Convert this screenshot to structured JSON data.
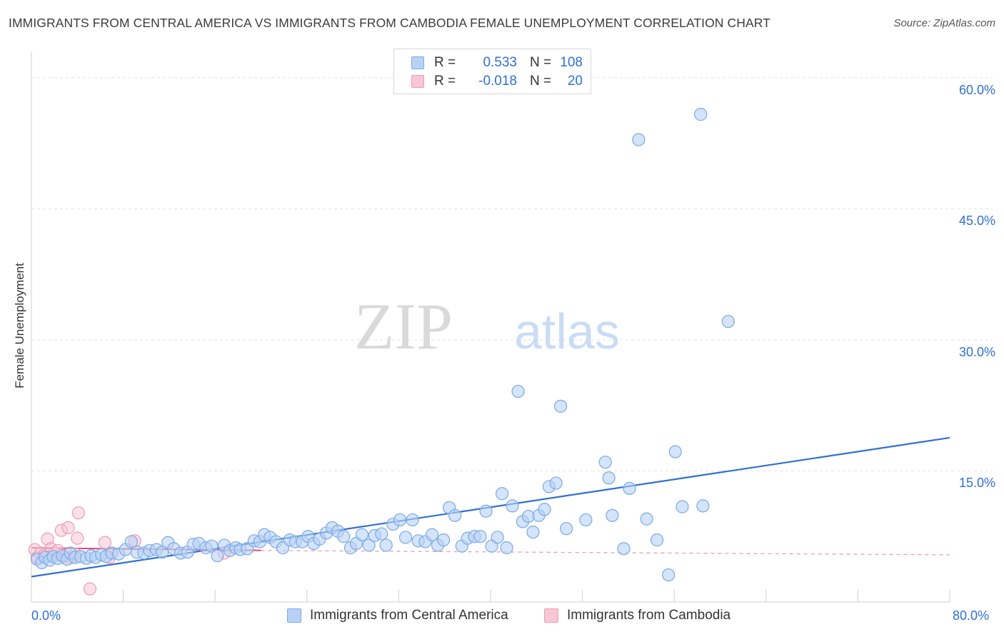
{
  "header": {
    "title": "IMMIGRANTS FROM CENTRAL AMERICA VS IMMIGRANTS FROM CAMBODIA FEMALE UNEMPLOYMENT CORRELATION CHART",
    "source": "Source: ZipAtlas.com"
  },
  "watermark": {
    "zip": "ZIP",
    "atlas": "atlas"
  },
  "legend": {
    "rows": [
      {
        "r_label": "R =",
        "r_value": "0.533",
        "n_label": "N =",
        "n_value": "108"
      },
      {
        "r_label": "R =",
        "r_value": "-0.018",
        "n_label": "N =",
        "n_value": "20"
      }
    ]
  },
  "bottom_legend": {
    "series_a": "Immigrants from Central America",
    "series_b": "Immigrants from Cambodia"
  },
  "colors": {
    "blue_fill": "#b7d2f5",
    "blue_stroke": "#7aa9e6",
    "blue_line": "#2e6fd4",
    "pink_fill": "#f9c6d5",
    "pink_stroke": "#ee9ab4",
    "pink_line": "#e8457b",
    "grid": "#e3e3e3",
    "tick_text": "#2e6fd4"
  },
  "chart_data": {
    "type": "scatter",
    "title": "IMMIGRANTS FROM CENTRAL AMERICA VS IMMIGRANTS FROM CAMBODIA FEMALE UNEMPLOYMENT CORRELATION CHART",
    "xlabel": "",
    "ylabel": "Female Unemployment",
    "xlim": [
      0,
      80
    ],
    "ylim": [
      0,
      63
    ],
    "x_tick_labels": [
      "0.0%",
      "80.0%"
    ],
    "y_ticks": [
      15,
      30,
      45,
      60
    ],
    "y_tick_labels": [
      "15.0%",
      "30.0%",
      "45.0%",
      "60.0%"
    ],
    "grid": true,
    "series": [
      {
        "name": "Immigrants from Central America",
        "color": "#b7d2f5",
        "R": 0.533,
        "N": 108,
        "trend": {
          "x": [
            0,
            80
          ],
          "y": [
            2.9,
            18.8
          ],
          "style": "solid"
        },
        "points": [
          [
            0.5,
            4.9
          ],
          [
            0.9,
            4.5
          ],
          [
            1.2,
            5.1
          ],
          [
            1.6,
            4.8
          ],
          [
            1.9,
            5.2
          ],
          [
            2.3,
            5.0
          ],
          [
            2.7,
            5.3
          ],
          [
            3.1,
            4.9
          ],
          [
            3.4,
            5.6
          ],
          [
            3.8,
            5.1
          ],
          [
            4.3,
            5.2
          ],
          [
            4.8,
            5.0
          ],
          [
            5.2,
            5.3
          ],
          [
            5.6,
            5.1
          ],
          [
            6.1,
            5.4
          ],
          [
            6.5,
            5.2
          ],
          [
            7.0,
            5.6
          ],
          [
            7.6,
            5.5
          ],
          [
            8.2,
            6.0
          ],
          [
            8.7,
            6.9
          ],
          [
            9.2,
            5.7
          ],
          [
            9.8,
            5.6
          ],
          [
            10.3,
            5.9
          ],
          [
            10.9,
            6.0
          ],
          [
            11.4,
            5.7
          ],
          [
            11.9,
            6.8
          ],
          [
            12.4,
            6.1
          ],
          [
            13.0,
            5.6
          ],
          [
            13.6,
            5.7
          ],
          [
            14.1,
            6.6
          ],
          [
            14.6,
            6.7
          ],
          [
            15.2,
            6.2
          ],
          [
            15.7,
            6.4
          ],
          [
            16.2,
            5.3
          ],
          [
            16.8,
            6.5
          ],
          [
            17.3,
            5.9
          ],
          [
            17.8,
            6.2
          ],
          [
            18.2,
            6.0
          ],
          [
            18.8,
            6.1
          ],
          [
            19.4,
            7.0
          ],
          [
            19.9,
            6.9
          ],
          [
            20.3,
            7.7
          ],
          [
            20.8,
            7.4
          ],
          [
            21.3,
            6.9
          ],
          [
            21.9,
            6.2
          ],
          [
            22.5,
            7.1
          ],
          [
            23.0,
            6.9
          ],
          [
            23.6,
            6.9
          ],
          [
            24.1,
            7.5
          ],
          [
            24.6,
            6.7
          ],
          [
            25.1,
            7.2
          ],
          [
            25.7,
            7.9
          ],
          [
            26.2,
            8.5
          ],
          [
            26.7,
            8.1
          ],
          [
            27.2,
            7.5
          ],
          [
            27.8,
            6.2
          ],
          [
            28.3,
            6.7
          ],
          [
            28.8,
            7.7
          ],
          [
            29.4,
            6.5
          ],
          [
            29.9,
            7.6
          ],
          [
            30.5,
            7.8
          ],
          [
            30.9,
            6.5
          ],
          [
            31.5,
            8.9
          ],
          [
            32.1,
            9.4
          ],
          [
            32.6,
            7.4
          ],
          [
            33.2,
            9.4
          ],
          [
            33.7,
            7.0
          ],
          [
            34.3,
            6.9
          ],
          [
            34.9,
            7.7
          ],
          [
            35.4,
            6.5
          ],
          [
            35.9,
            7.1
          ],
          [
            36.4,
            10.8
          ],
          [
            36.9,
            9.9
          ],
          [
            37.5,
            6.4
          ],
          [
            38.0,
            7.3
          ],
          [
            38.6,
            7.5
          ],
          [
            39.1,
            7.5
          ],
          [
            39.6,
            10.4
          ],
          [
            40.1,
            6.4
          ],
          [
            40.6,
            7.4
          ],
          [
            41.0,
            12.4
          ],
          [
            41.4,
            6.2
          ],
          [
            41.9,
            11.0
          ],
          [
            42.4,
            24.1
          ],
          [
            42.8,
            9.2
          ],
          [
            43.3,
            9.8
          ],
          [
            43.7,
            8.0
          ],
          [
            44.2,
            9.9
          ],
          [
            44.7,
            10.6
          ],
          [
            45.1,
            13.2
          ],
          [
            45.7,
            13.6
          ],
          [
            46.1,
            22.4
          ],
          [
            46.6,
            8.4
          ],
          [
            48.3,
            9.4
          ],
          [
            50.0,
            16.0
          ],
          [
            50.3,
            14.2
          ],
          [
            50.6,
            9.9
          ],
          [
            51.6,
            6.1
          ],
          [
            52.1,
            13.0
          ],
          [
            53.6,
            9.5
          ],
          [
            54.5,
            7.1
          ],
          [
            55.5,
            3.1
          ],
          [
            56.1,
            17.2
          ],
          [
            56.7,
            10.9
          ],
          [
            58.3,
            55.8
          ],
          [
            58.5,
            11.0
          ],
          [
            60.7,
            32.1
          ],
          [
            52.9,
            52.9
          ]
        ]
      },
      {
        "name": "Immigrants from Cambodia",
        "color": "#f9c6d5",
        "R": -0.018,
        "N": 20,
        "trend": {
          "x": [
            0,
            20
          ],
          "y": [
            6.2,
            5.9
          ],
          "style": "solid",
          "extended_x": [
            20,
            80
          ],
          "extended_y": [
            5.9,
            5.4
          ],
          "extended_style": "dashed"
        },
        "points": [
          [
            0.3,
            6.0
          ],
          [
            0.5,
            5.1
          ],
          [
            0.8,
            5.6
          ],
          [
            1.1,
            5.3
          ],
          [
            1.4,
            7.2
          ],
          [
            1.7,
            6.1
          ],
          [
            2.0,
            5.6
          ],
          [
            2.3,
            5.9
          ],
          [
            2.6,
            8.2
          ],
          [
            2.9,
            5.2
          ],
          [
            3.2,
            8.5
          ],
          [
            3.5,
            5.1
          ],
          [
            3.8,
            5.5
          ],
          [
            4.0,
            7.3
          ],
          [
            4.1,
            10.2
          ],
          [
            5.1,
            1.5
          ],
          [
            6.4,
            6.8
          ],
          [
            6.8,
            5.1
          ],
          [
            9.0,
            7.0
          ],
          [
            16.8,
            5.6
          ]
        ]
      }
    ]
  }
}
